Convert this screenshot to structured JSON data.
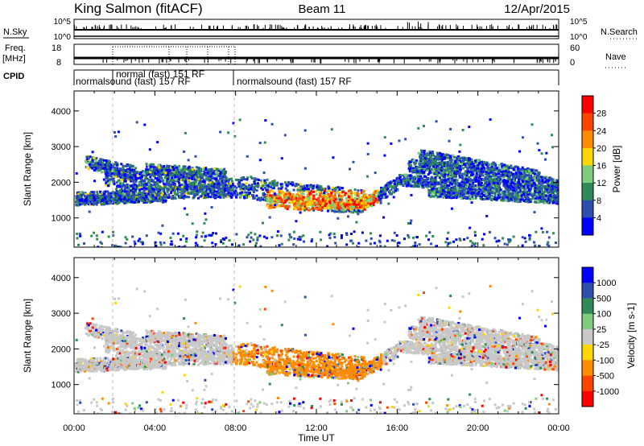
{
  "header": {
    "station": "King Salmon (fitACF)",
    "beam": "Beam 11",
    "date": "12/Apr/2015"
  },
  "top_panels": {
    "nsky_label": "N.Sky",
    "nsearch_label": "N.Search",
    "log_top": "10^5",
    "log_bottom": "10^0",
    "freq_label_1": "Freq.",
    "freq_label_2": "[MHz]",
    "freq_ticks": [
      "18",
      "8"
    ],
    "nave_ticks": [
      "60",
      "0"
    ],
    "nave_label": "Nave",
    "cpid_label": "CPID",
    "cpid_segments": [
      {
        "label": "normal (fast) 151 RF"
      },
      {
        "label": "normalsound (fast) 157 RF"
      },
      {
        "label": "normalsound (fast) 157 RF"
      }
    ]
  },
  "colors": {
    "power": [
      "#0000ff",
      "#2f4fb0",
      "#2e8b57",
      "#7ccd7c",
      "#ffd700",
      "#ff8c00",
      "#ff4500",
      "#ff0000"
    ],
    "velocity": [
      "#ff0000",
      "#ff4500",
      "#ff8c00",
      "#ffd700",
      "#c8c8c8",
      "#7ccd7c",
      "#2e8b57",
      "#2f4fb0",
      "#0000ff"
    ],
    "ground": "#c8c8c8"
  },
  "chart_data": [
    {
      "type": "heatmap",
      "name": "power",
      "xlabel": "Time UT",
      "ylabel": "Slant Range [km]",
      "x_range_hours": [
        0,
        24
      ],
      "x_ticks": [
        "00:00",
        "04:00",
        "08:00",
        "12:00",
        "16:00",
        "20:00",
        "00:00"
      ],
      "y_range_km": [
        180,
        4560
      ],
      "y_ticks": [
        1000,
        2000,
        3000,
        4000
      ],
      "colorbar_label": "Power [dB]",
      "colorbar_ticks": [
        "4",
        "8",
        "12",
        "16",
        "20",
        "24",
        "28"
      ],
      "colorbar_range": [
        0,
        32
      ]
    },
    {
      "type": "heatmap",
      "name": "velocity",
      "xlabel": "Time UT",
      "ylabel": "Slant Range [km]",
      "x_range_hours": [
        0,
        24
      ],
      "x_ticks": [
        "00:00",
        "04:00",
        "08:00",
        "12:00",
        "16:00",
        "20:00",
        "00:00"
      ],
      "y_range_km": [
        180,
        4560
      ],
      "y_ticks": [
        1000,
        2000,
        3000,
        4000
      ],
      "colorbar_label": "Velocity [m s-1]",
      "colorbar_ticks": [
        "1000",
        "500",
        "100",
        "25",
        "-25",
        "-100",
        "-500",
        "-1000"
      ]
    }
  ]
}
